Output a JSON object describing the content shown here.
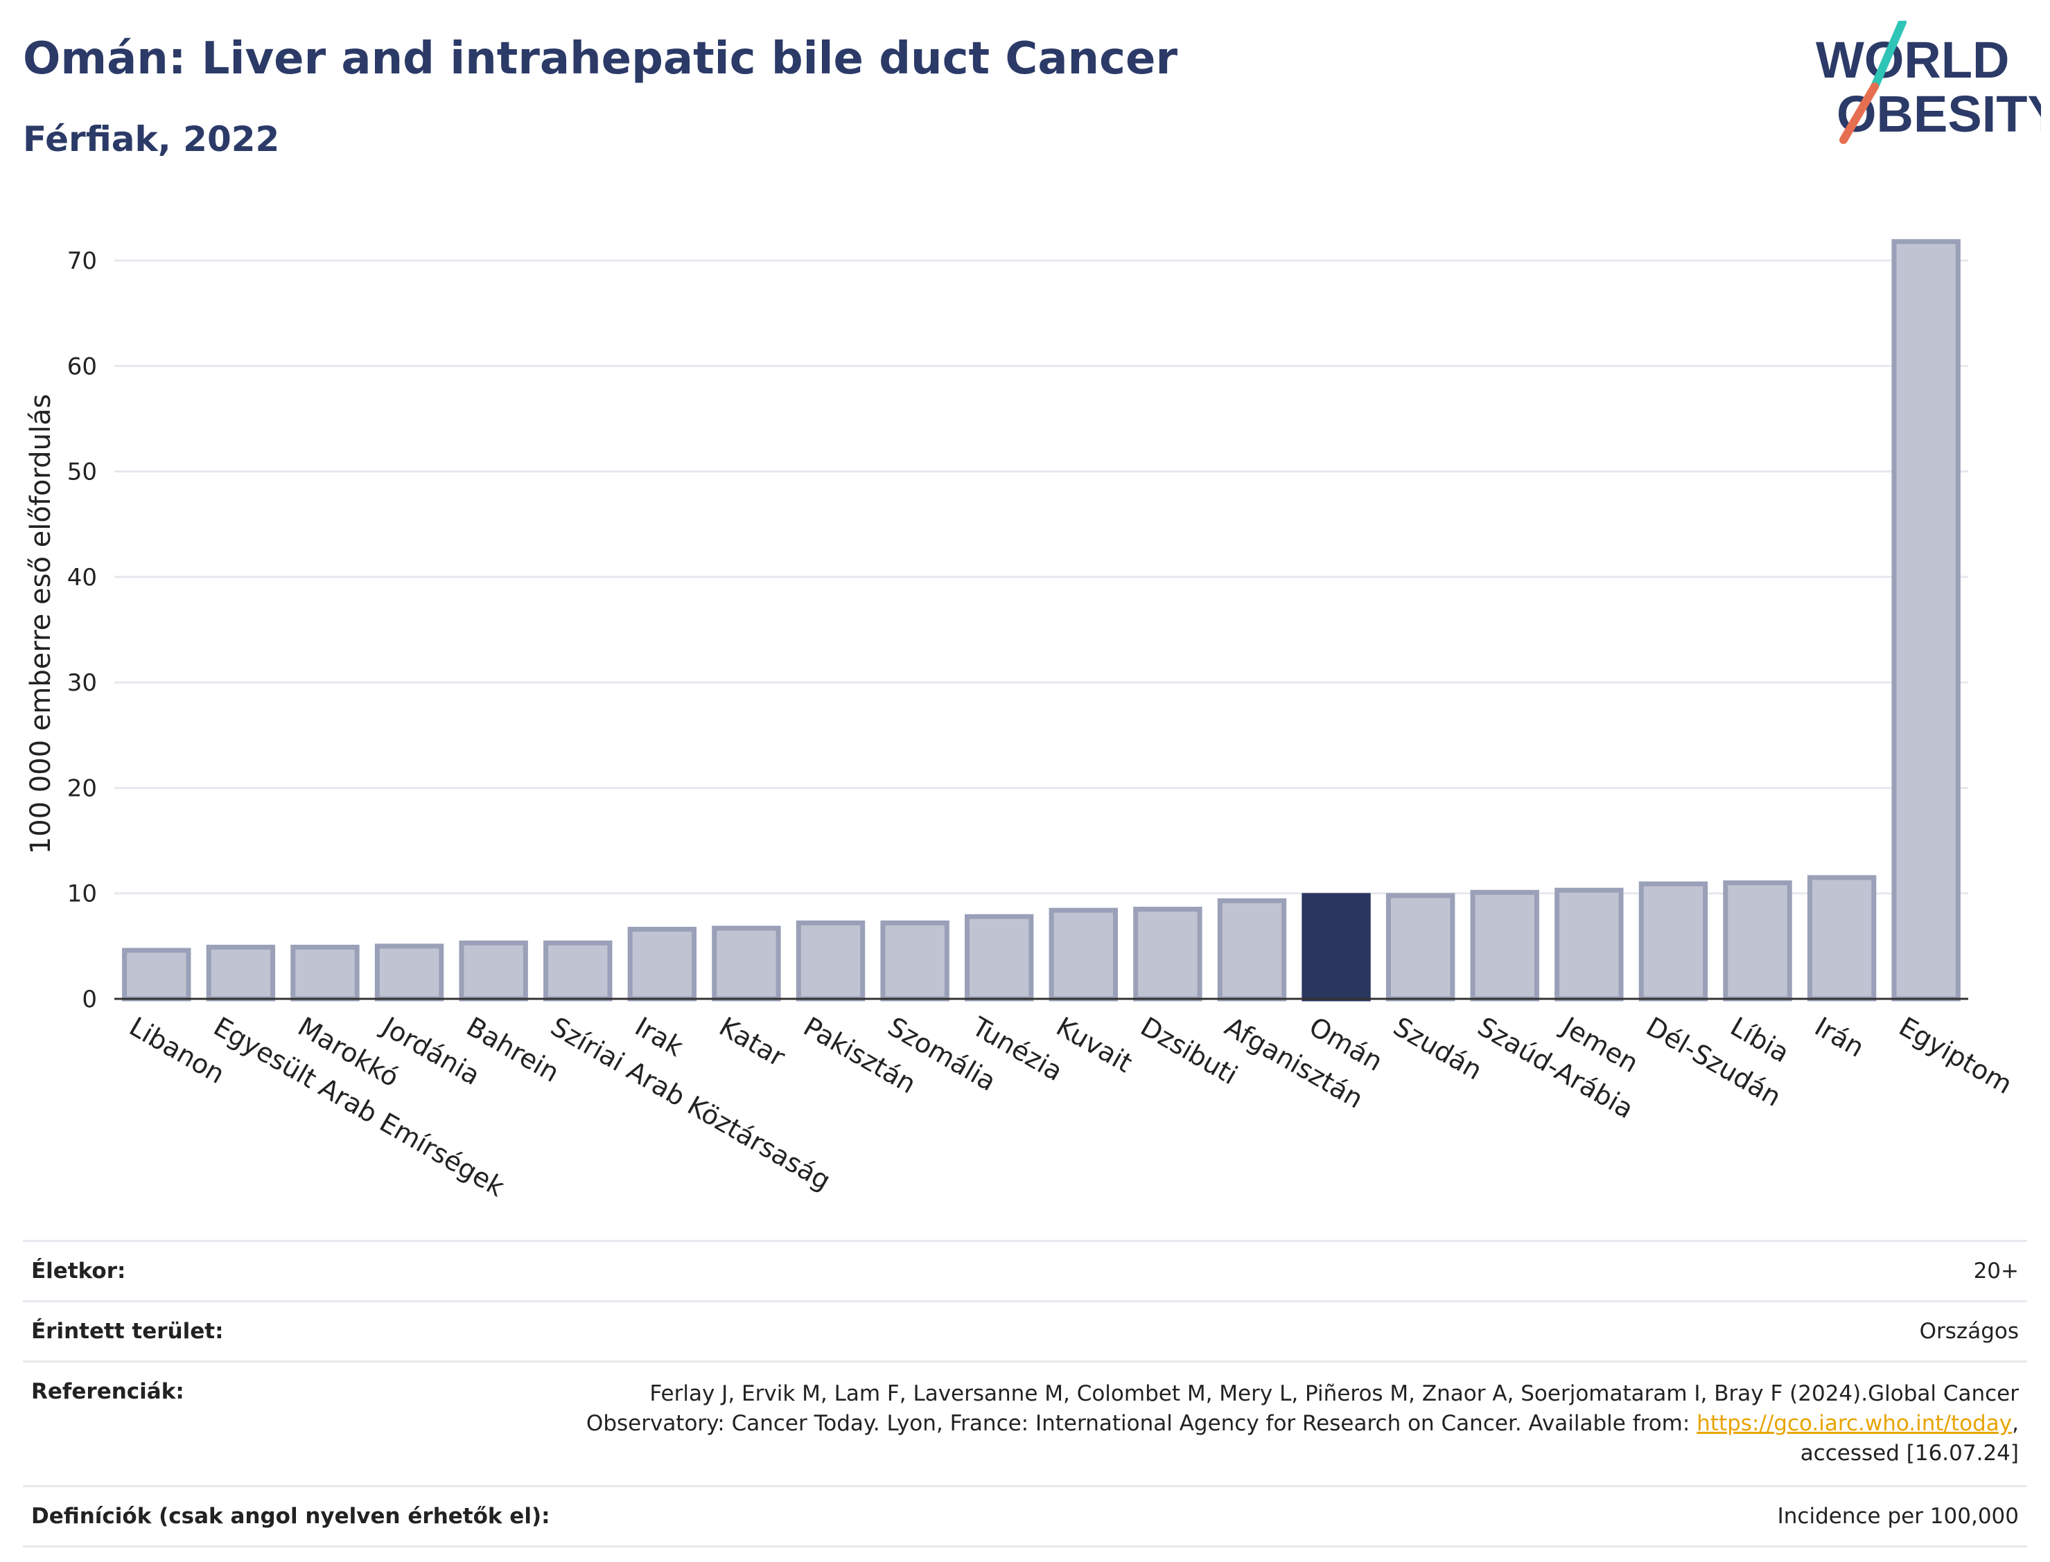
{
  "header": {
    "title": "Omán: Liver and intrahepatic bile duct Cancer",
    "subtitle": "Férfiak, 2022"
  },
  "logo": {
    "line1": "WORLD",
    "line2": "OBESITY",
    "colors": {
      "text": "#2b3a67",
      "slash_top": "#2ec4b6",
      "slash_bottom": "#e76f51"
    }
  },
  "chart_data": {
    "type": "bar",
    "ylabel": "100 000 emberre eső előfordulás",
    "ylim": [
      0,
      75
    ],
    "yticks": [
      0,
      10,
      20,
      30,
      40,
      50,
      60,
      70
    ],
    "grid": true,
    "highlight": "Omán",
    "colors": {
      "bar": "#c0c3d1",
      "bar_edge": "#9aa0b8",
      "highlight": "#2b3660"
    },
    "categories": [
      "Libanon",
      "Egyesült Arab Emírségek",
      "Marokkó",
      "Jordánia",
      "Bahrein",
      "Szíriai Arab Köztársaság",
      "Irak",
      "Katar",
      "Pakisztán",
      "Szomália",
      "Tunézia",
      "Kuvait",
      "Dzsibuti",
      "Afganisztán",
      "Omán",
      "Szudán",
      "Szaúd-Arábia",
      "Jemen",
      "Dél-Szudán",
      "Líbia",
      "Irán",
      "Egyiptom"
    ],
    "values": [
      4.6,
      4.9,
      4.9,
      5.0,
      5.3,
      5.3,
      6.6,
      6.7,
      7.2,
      7.2,
      7.8,
      8.4,
      8.5,
      9.3,
      9.8,
      9.8,
      10.1,
      10.3,
      10.9,
      11.0,
      11.5,
      71.8
    ]
  },
  "info": {
    "age_label": "Életkor:",
    "age_value": "20+",
    "area_label": "Érintett terület:",
    "area_value": "Országos",
    "ref_label": "Referenciák:",
    "ref_text_1": "Ferlay J, Ervik M, Lam F, Laversanne M, Colombet M, Mery L, Piñeros M, Znaor A, Soerjomataram I, Bray F (2024).Global Cancer Observatory: Cancer Today. Lyon, France: International Agency for Research on Cancer. Available from: ",
    "ref_link": "https://gco.iarc.who.int/today",
    "ref_text_2": ", accessed [16.07.24]",
    "def_label": "Definíciók (csak angol nyelven érhetők el):",
    "def_value": "Incidence per 100,000"
  }
}
